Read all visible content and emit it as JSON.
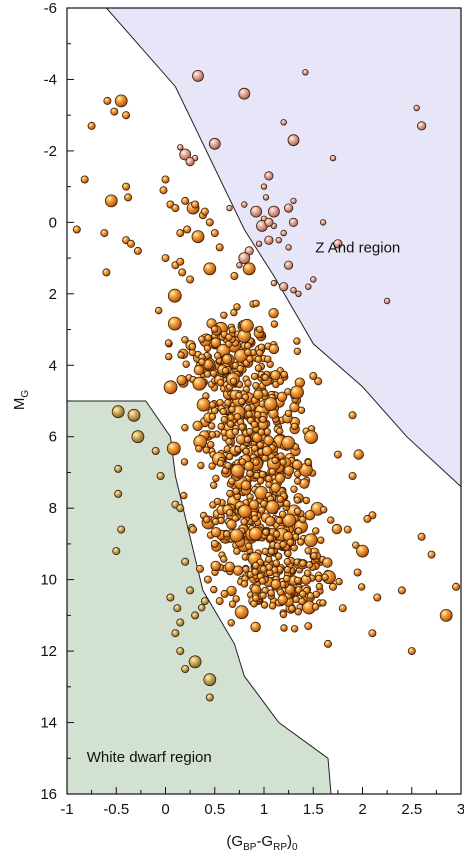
{
  "chart_data": {
    "type": "scatter",
    "title": "",
    "xlabel": {
      "main": "(G",
      "sub1": "BP",
      "mid": "-G",
      "sub2": "RP",
      "close": ")",
      "sub3": "0"
    },
    "ylabel": {
      "main": "M",
      "sub": "G"
    },
    "xlim": [
      -1,
      3
    ],
    "ylim": [
      16,
      -6
    ],
    "y_inverted": true,
    "grid": false,
    "x_ticks": [
      -1,
      -0.5,
      0,
      0.5,
      1,
      1.5,
      2,
      2.5,
      3
    ],
    "x_tick_labels": [
      "-1",
      "-0.5",
      "0",
      "0.5",
      "1",
      "1.5",
      "2",
      "2.5",
      "3"
    ],
    "y_ticks": [
      -6,
      -4,
      -2,
      0,
      2,
      4,
      6,
      8,
      10,
      12,
      14,
      16
    ],
    "y_tick_labels": [
      "-6",
      "-4",
      "-2",
      "0",
      "2",
      "4",
      "6",
      "8",
      "10",
      "12",
      "14",
      "16"
    ],
    "regions": [
      {
        "label": "Z And region",
        "label_at": [
          1.52,
          0.85
        ],
        "fill": "#e6e6f8",
        "boundary": [
          [
            -1,
            -6
          ],
          [
            -0.6,
            -6
          ],
          [
            0.1,
            -3.8
          ],
          [
            0.8,
            0.2
          ],
          [
            1.1,
            1.5
          ],
          [
            1.5,
            3.4
          ],
          [
            2.0,
            4.6
          ],
          [
            2.45,
            6.0
          ],
          [
            3,
            7.4
          ],
          [
            3,
            -6
          ]
        ]
      },
      {
        "label": "White dwarf region",
        "label_at": [
          -0.8,
          15.1
        ],
        "fill": "#d3e1d3",
        "boundary": [
          [
            -1,
            5.0
          ],
          [
            -0.2,
            5.0
          ],
          [
            0.05,
            6.0
          ],
          [
            0.1,
            7.1
          ],
          [
            0.38,
            10.3
          ],
          [
            0.7,
            11.8
          ],
          [
            0.8,
            12.7
          ],
          [
            1.15,
            14.0
          ],
          [
            1.65,
            15.0
          ],
          [
            1.68,
            16
          ],
          [
            -1,
            16
          ]
        ]
      }
    ],
    "series": [
      {
        "marker_color": "#e88a2a",
        "points": [
          [
            -0.59,
            -3.4
          ],
          [
            -0.45,
            -3.4
          ],
          [
            -0.75,
            -2.7
          ],
          [
            -0.4,
            -3.0
          ],
          [
            -0.52,
            -3.1
          ],
          [
            -0.82,
            -1.2
          ],
          [
            -0.4,
            -1.0
          ],
          [
            -0.55,
            -0.6
          ],
          [
            -0.38,
            -0.7
          ],
          [
            -0.9,
            0.2
          ],
          [
            -0.62,
            0.3
          ],
          [
            -0.4,
            0.5
          ],
          [
            -0.35,
            0.6
          ],
          [
            -0.28,
            0.8
          ],
          [
            -0.6,
            1.4
          ],
          [
            0.0,
            -1.2
          ],
          [
            -0.02,
            -0.9
          ],
          [
            0.05,
            -0.5
          ],
          [
            0.1,
            -0.4
          ],
          [
            0.2,
            -0.6
          ],
          [
            0.28,
            -0.4
          ],
          [
            0.3,
            -0.5
          ],
          [
            0.38,
            -0.2
          ],
          [
            0.4,
            -0.3
          ],
          [
            0.45,
            0.0
          ],
          [
            0.15,
            0.3
          ],
          [
            0.22,
            0.2
          ],
          [
            0.33,
            0.4
          ],
          [
            0.5,
            0.3
          ],
          [
            0.55,
            0.7
          ],
          [
            0.0,
            1.0
          ],
          [
            0.1,
            1.2
          ],
          [
            0.15,
            1.1
          ],
          [
            0.17,
            1.4
          ],
          [
            0.25,
            1.6
          ],
          [
            1.5,
            4.3
          ],
          [
            1.55,
            4.45
          ],
          [
            0.45,
            1.3
          ],
          [
            0.7,
            1.5
          ],
          [
            0.85,
            1.3
          ],
          [
            1.45,
            11.3
          ],
          [
            2.5,
            12.0
          ],
          [
            2.95,
            10.2
          ],
          [
            2.85,
            11.0
          ],
          [
            2.4,
            10.3
          ],
          [
            2.6,
            8.8
          ],
          [
            2.7,
            9.3
          ],
          [
            1.9,
            5.4
          ],
          [
            2.1,
            8.2
          ],
          [
            2.05,
            8.3
          ],
          [
            -0.48,
            5.3
          ],
          [
            -0.32,
            5.4
          ],
          [
            -0.48,
            6.9
          ],
          [
            -0.48,
            7.6
          ],
          [
            -0.28,
            6.0
          ],
          [
            -0.1,
            6.4
          ],
          [
            -0.05,
            7.1
          ],
          [
            0.1,
            7.9
          ],
          [
            0.15,
            8.0
          ],
          [
            -0.45,
            8.6
          ],
          [
            -0.5,
            9.2
          ],
          [
            0.2,
            9.5
          ],
          [
            0.25,
            10.3
          ],
          [
            0.3,
            11.0
          ],
          [
            0.05,
            10.5
          ],
          [
            0.12,
            10.8
          ],
          [
            0.15,
            11.2
          ],
          [
            0.1,
            11.5
          ],
          [
            0.15,
            12.0
          ],
          [
            0.2,
            12.5
          ],
          [
            0.45,
            12.8
          ],
          [
            0.45,
            13.3
          ],
          [
            0.3,
            12.3
          ],
          [
            0.4,
            10.6
          ],
          [
            0.43,
            10.0
          ],
          [
            0.5,
            9.0
          ],
          [
            0.35,
            9.7
          ],
          [
            0.28,
            8.6
          ],
          [
            0.55,
            10.6
          ],
          [
            0.6,
            10.4
          ],
          [
            2.0,
            9.2
          ],
          [
            1.7,
            10.2
          ],
          [
            1.65,
            11.8
          ],
          [
            2.1,
            11.5
          ],
          [
            1.8,
            10.8
          ],
          [
            1.9,
            7.1
          ],
          [
            1.75,
            6.5
          ],
          [
            1.85,
            8.6
          ],
          [
            1.95,
            9.8
          ],
          [
            2.15,
            10.5
          ]
        ]
      },
      {
        "marker_color": "#e8aaa0",
        "points": [
          [
            0.33,
            -4.1
          ],
          [
            1.42,
            -4.2
          ],
          [
            0.8,
            -3.6
          ],
          [
            2.55,
            -3.2
          ],
          [
            2.6,
            -2.7
          ],
          [
            1.2,
            -2.8
          ],
          [
            0.5,
            -2.2
          ],
          [
            1.3,
            -2.3
          ],
          [
            1.7,
            -1.8
          ],
          [
            0.15,
            -2.1
          ],
          [
            0.2,
            -1.9
          ],
          [
            0.3,
            -1.8
          ],
          [
            0.25,
            -1.7
          ],
          [
            1.05,
            -1.3
          ],
          [
            1.0,
            -1.0
          ],
          [
            1.02,
            -0.7
          ],
          [
            1.3,
            -0.6
          ],
          [
            1.25,
            -0.4
          ],
          [
            0.8,
            -0.5
          ],
          [
            0.65,
            -0.4
          ],
          [
            1.1,
            -0.3
          ],
          [
            1.0,
            -0.1
          ],
          [
            1.1,
            0.1
          ],
          [
            1.3,
            0.0
          ],
          [
            1.2,
            0.3
          ],
          [
            1.15,
            0.5
          ],
          [
            1.05,
            0.5
          ],
          [
            0.95,
            0.6
          ],
          [
            1.25,
            0.7
          ],
          [
            0.85,
            0.8
          ],
          [
            0.8,
            1.0
          ],
          [
            0.75,
            1.2
          ],
          [
            1.1,
            1.7
          ],
          [
            1.2,
            1.8
          ],
          [
            1.3,
            1.9
          ],
          [
            1.45,
            1.8
          ],
          [
            1.5,
            1.6
          ],
          [
            1.6,
            0.0
          ],
          [
            1.75,
            0.6
          ],
          [
            2.25,
            2.2
          ],
          [
            1.35,
            2.0
          ],
          [
            1.25,
            1.2
          ],
          [
            0.98,
            0.1
          ],
          [
            1.05,
            0.0
          ],
          [
            0.92,
            -0.3
          ]
        ]
      }
    ]
  }
}
